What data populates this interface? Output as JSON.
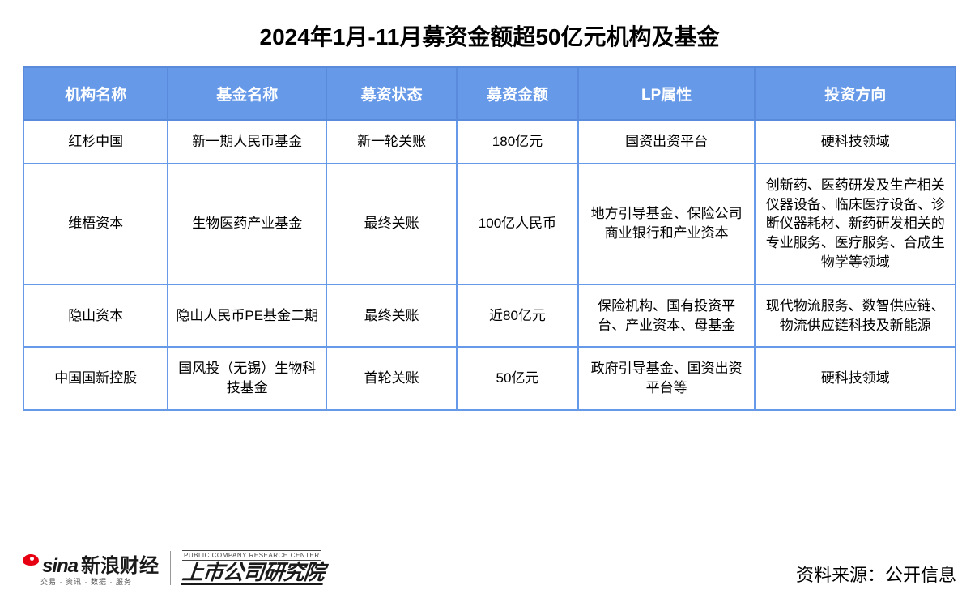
{
  "title": "2024年1月-11月募资金额超50亿元机构及基金",
  "columns": [
    "机构名称",
    "基金名称",
    "募资状态",
    "募资金额",
    "LP属性",
    "投资方向"
  ],
  "rows": [
    [
      "红杉中国",
      "新一期人民币基金",
      "新一轮关账",
      "180亿元",
      "国资出资平台",
      "硬科技领域"
    ],
    [
      "维梧资本",
      "生物医药产业基金",
      "最终关账",
      "100亿人民币",
      "地方引导基金、保险公司商业银行和产业资本",
      "创新药、医药研发及生产相关仪器设备、临床医疗设备、诊断仪器耗材、新药研发相关的专业服务、医疗服务、合成生物学等领域"
    ],
    [
      "隐山资本",
      "隐山人民币PE基金二期",
      "最终关账",
      "近80亿元",
      "保险机构、国有投资平台、产业资本、母基金",
      "现代物流服务、数智供应链、物流供应链科技及新能源"
    ],
    [
      "中国国新控股",
      "国风投（无锡）生物科技基金",
      "首轮关账",
      "50亿元",
      "政府引导基金、国资出资平台等",
      "硬科技领域"
    ]
  ],
  "footer": {
    "sina_latin": "sina",
    "sina_cn": "新浪财经",
    "sina_sub": "交易 · 资讯 · 数据 · 服务",
    "inst_en": "PUBLIC COMPANY RESEARCH CENTER",
    "inst_cn": "上市公司研究院",
    "source_label": "资料来源：",
    "source_value": "公开信息"
  },
  "style": {
    "header_bg": "#6699e8",
    "header_fg": "#ffffff",
    "cell_border": "#6699e8",
    "title_color": "#000000"
  }
}
